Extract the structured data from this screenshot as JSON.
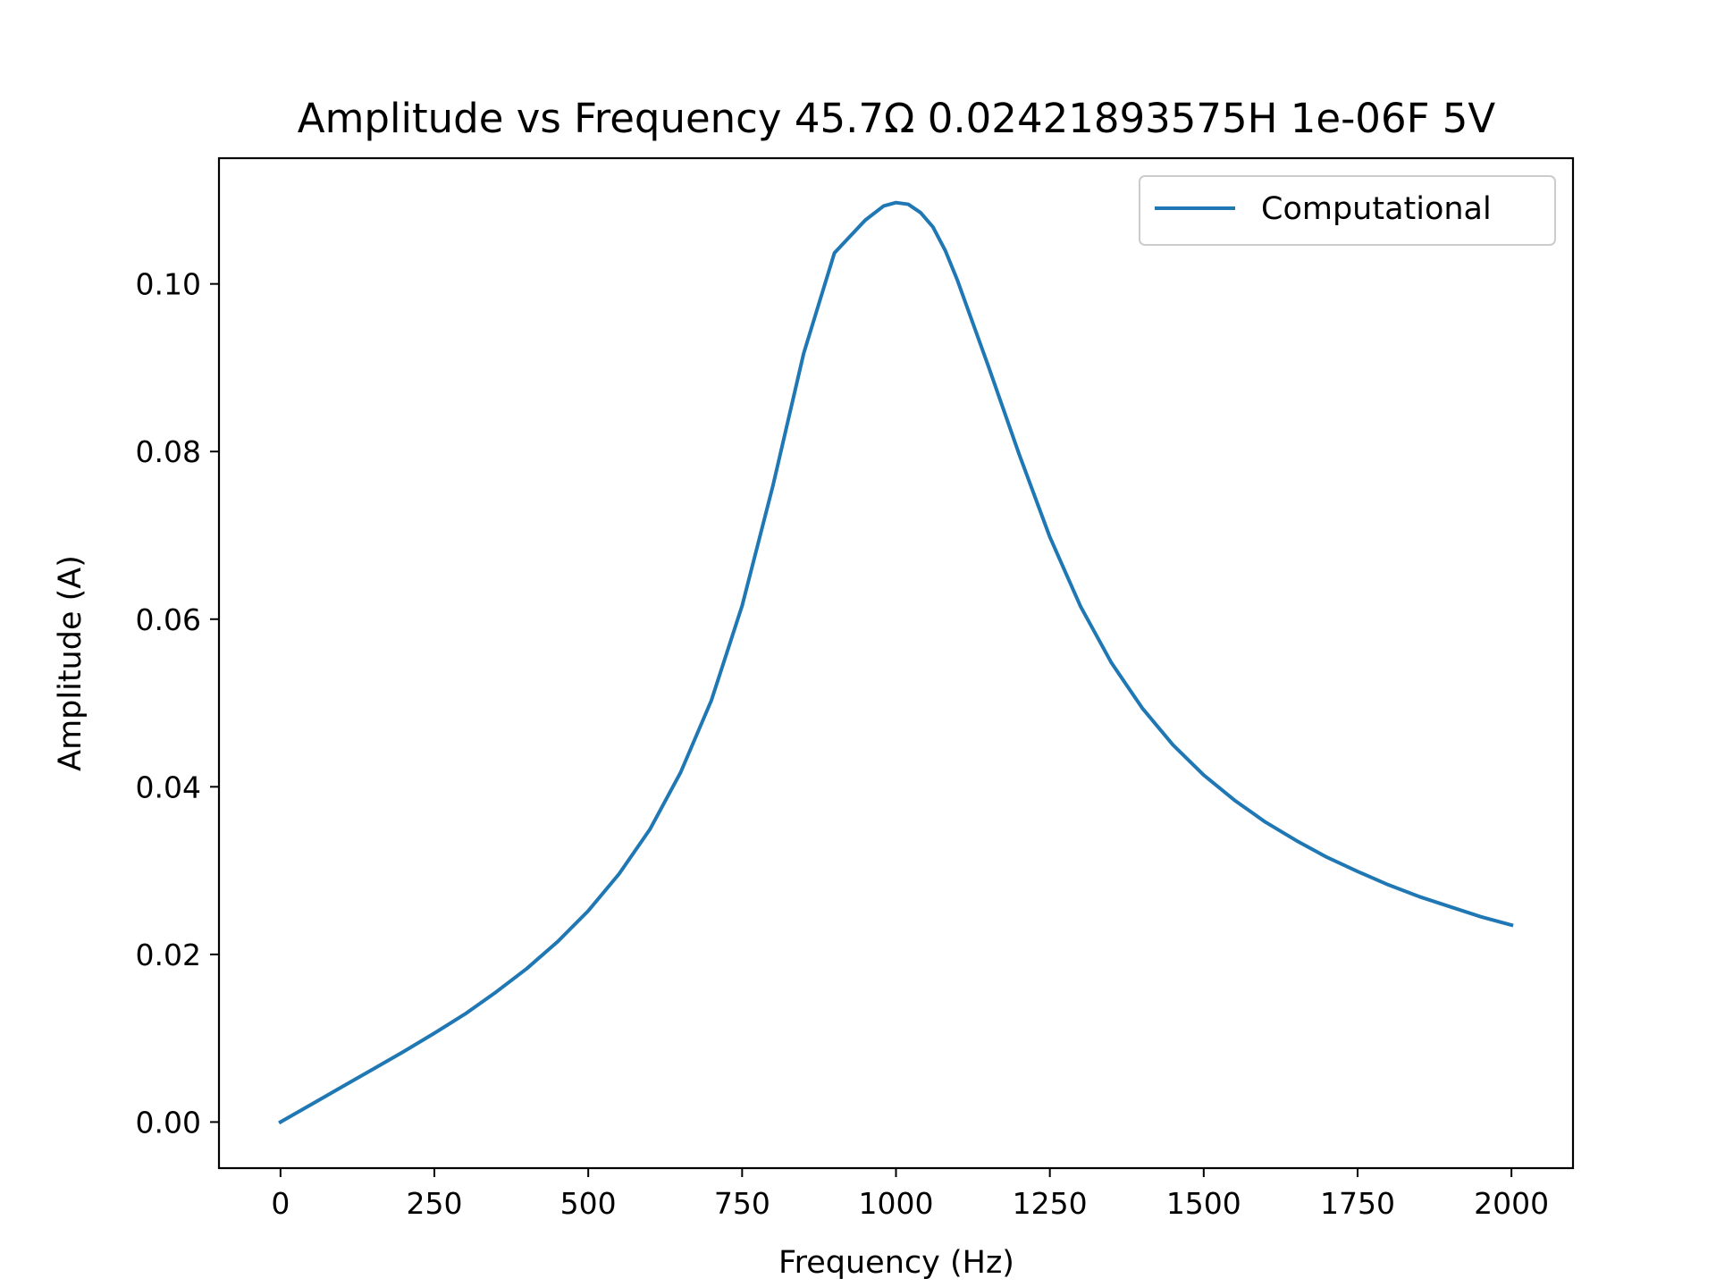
{
  "chart_data": {
    "type": "line",
    "title": "Amplitude vs Frequency 45.7Ω 0.02421893575H 1e-06F 5V",
    "xlabel": "Frequency (Hz)",
    "ylabel": "Amplitude (A)",
    "xlim": [
      -100,
      2100
    ],
    "ylim": [
      -0.0055,
      0.115
    ],
    "xticks": [
      0,
      250,
      500,
      750,
      1000,
      1250,
      1500,
      1750,
      2000
    ],
    "xtick_labels": [
      "0",
      "250",
      "500",
      "750",
      "1000",
      "1250",
      "1500",
      "1750",
      "2000"
    ],
    "yticks": [
      0.0,
      0.02,
      0.04,
      0.06,
      0.08,
      0.1
    ],
    "ytick_labels": [
      "0.00",
      "0.02",
      "0.04",
      "0.06",
      "0.08",
      "0.10"
    ],
    "grid": false,
    "legend_position": "top-right",
    "series": [
      {
        "name": "Computational",
        "color": "#1f77b4",
        "x": [
          0,
          50,
          100,
          150,
          200,
          250,
          300,
          350,
          400,
          450,
          500,
          550,
          600,
          650,
          700,
          750,
          800,
          850,
          900,
          950,
          980,
          1000,
          1020,
          1040,
          1060,
          1080,
          1100,
          1150,
          1200,
          1250,
          1300,
          1350,
          1400,
          1450,
          1500,
          1550,
          1600,
          1650,
          1700,
          1750,
          1800,
          1850,
          1900,
          1950,
          2000
        ],
        "y": [
          0.0,
          0.0021,
          0.0042,
          0.0063,
          0.0084,
          0.0106,
          0.0129,
          0.0155,
          0.0183,
          0.0215,
          0.0252,
          0.0296,
          0.0349,
          0.0417,
          0.0503,
          0.0616,
          0.0759,
          0.0917,
          0.1037,
          0.1076,
          0.1093,
          0.1097,
          0.1095,
          0.1085,
          0.1068,
          0.104,
          0.1004,
          0.0902,
          0.0797,
          0.0698,
          0.0615,
          0.0548,
          0.0494,
          0.045,
          0.0414,
          0.0384,
          0.0358,
          0.0336,
          0.0316,
          0.0299,
          0.0283,
          0.0269,
          0.0257,
          0.0245,
          0.0235
        ]
      }
    ]
  }
}
